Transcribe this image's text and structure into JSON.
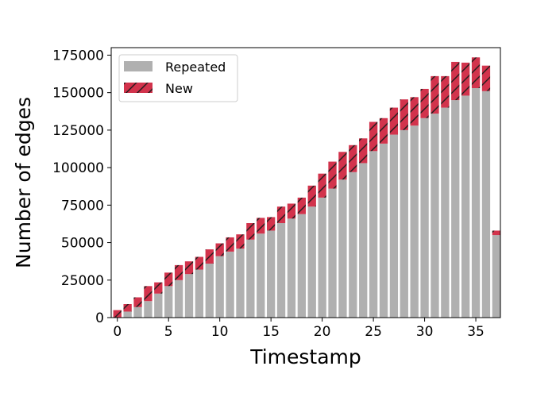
{
  "chart_data": {
    "type": "bar",
    "stacked": true,
    "title": "",
    "xlabel": "Timestamp",
    "ylabel": "Number of edges",
    "x": [
      0,
      1,
      2,
      3,
      4,
      5,
      6,
      7,
      8,
      9,
      10,
      11,
      12,
      13,
      14,
      15,
      16,
      17,
      18,
      19,
      20,
      21,
      22,
      23,
      24,
      25,
      26,
      27,
      28,
      29,
      30,
      31,
      32,
      33,
      34,
      35,
      36,
      37
    ],
    "xlim": [
      -0.6,
      37.4
    ],
    "ylim": [
      0,
      180000
    ],
    "xticks": [
      0,
      5,
      10,
      15,
      20,
      25,
      30,
      35
    ],
    "xtick_labels": [
      "0",
      "5",
      "10",
      "15",
      "20",
      "25",
      "30",
      "35"
    ],
    "yticks": [
      0,
      25000,
      50000,
      75000,
      100000,
      125000,
      150000,
      175000
    ],
    "ytick_labels": [
      "0",
      "25000",
      "50000",
      "75000",
      "100000",
      "125000",
      "150000",
      "175000"
    ],
    "grid": false,
    "legend_position": "top-left",
    "series": [
      {
        "name": "Repeated",
        "color": "#b0b0b0",
        "hatch": false,
        "values": [
          0,
          4000,
          7000,
          11000,
          16000,
          21000,
          25000,
          29000,
          32000,
          36000,
          41000,
          44000,
          46000,
          52000,
          56000,
          58000,
          63000,
          66000,
          69000,
          74000,
          80000,
          86000,
          92000,
          97000,
          103000,
          111000,
          116000,
          122000,
          125000,
          128000,
          133000,
          136000,
          140000,
          145000,
          148000,
          153000,
          151000,
          55000
        ]
      },
      {
        "name": "New",
        "color": "#d2334c",
        "hatch": true,
        "values": [
          5000,
          5000,
          6500,
          10000,
          7500,
          9000,
          10000,
          8500,
          8500,
          9500,
          8500,
          9500,
          9500,
          11000,
          10500,
          9000,
          11000,
          10000,
          11000,
          14000,
          16000,
          18000,
          18500,
          18000,
          16500,
          19500,
          17000,
          18000,
          20500,
          19000,
          19500,
          25000,
          21000,
          25500,
          22000,
          20500,
          17000,
          3000
        ]
      }
    ]
  }
}
